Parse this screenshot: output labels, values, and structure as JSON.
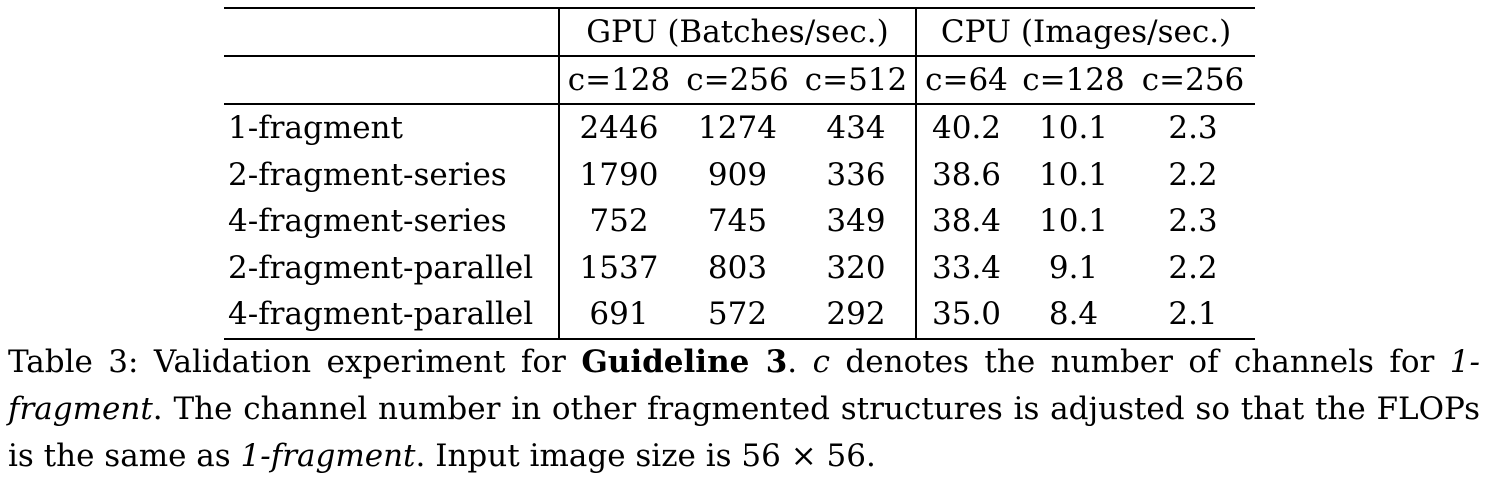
{
  "table": {
    "group_headers": [
      {
        "label": "GPU (Batches/sec.)"
      },
      {
        "label": "CPU (Images/sec.)"
      }
    ],
    "sub_headers": [
      "c=128",
      "c=256",
      "c=512",
      "c=64",
      "c=128",
      "c=256"
    ],
    "rows": [
      {
        "method": "1-fragment",
        "values": [
          "2446",
          "1274",
          "434",
          "40.2",
          "10.1",
          "2.3"
        ]
      },
      {
        "method": "2-fragment-series",
        "values": [
          "1790",
          "909",
          "336",
          "38.6",
          "10.1",
          "2.2"
        ]
      },
      {
        "method": "4-fragment-series",
        "values": [
          "752",
          "745",
          "349",
          "38.4",
          "10.1",
          "2.3"
        ]
      },
      {
        "method": "2-fragment-parallel",
        "values": [
          "1537",
          "803",
          "320",
          "33.4",
          "9.1",
          "2.2"
        ]
      },
      {
        "method": "4-fragment-parallel",
        "values": [
          "691",
          "572",
          "292",
          "35.0",
          "8.4",
          "2.1"
        ]
      }
    ]
  },
  "caption": {
    "prefix": "Table 3: Validation experiment for ",
    "bold": "Guideline 3",
    "part2": ". ",
    "var_c": "c",
    "part3": " denotes the number of channels for ",
    "italic1": "1-fragment",
    "part4": ". The channel number in other fragmented structures is adjusted so that the FLOPs is the same as ",
    "italic2": "1-fragment",
    "part5": ". Input image size is 56 × 56."
  }
}
